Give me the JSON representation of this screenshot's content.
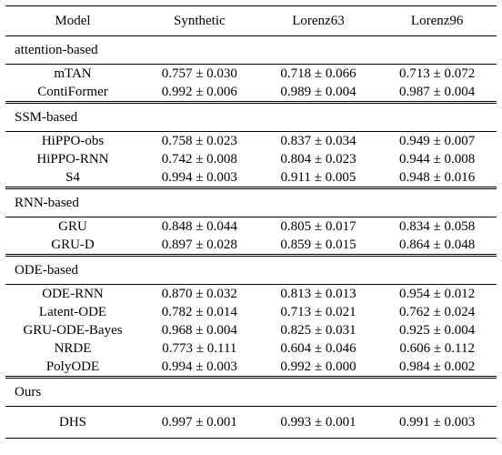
{
  "header": {
    "model": "Model",
    "synthetic": "Synthetic",
    "lorenz63": "Lorenz63",
    "lorenz96": "Lorenz96"
  },
  "groups": [
    {
      "label": "attention-based",
      "rows": [
        {
          "model": "mTAN",
          "synthetic": "0.757 ± 0.030",
          "lorenz63": "0.718 ± 0.066",
          "lorenz96": "0.713 ± 0.072"
        },
        {
          "model": "ContiFormer",
          "synthetic": "0.992 ± 0.006",
          "lorenz63": "0.989 ± 0.004",
          "lorenz96": "0.987 ± 0.004"
        }
      ]
    },
    {
      "label": "SSM-based",
      "rows": [
        {
          "model": "HiPPO-obs",
          "synthetic": "0.758 ± 0.023",
          "lorenz63": "0.837 ± 0.034",
          "lorenz96": "0.949 ± 0.007"
        },
        {
          "model": "HiPPO-RNN",
          "synthetic": "0.742 ± 0.008",
          "lorenz63": "0.804 ± 0.023",
          "lorenz96": "0.944 ± 0.008"
        },
        {
          "model": "S4",
          "synthetic": "0.994 ± 0.003",
          "lorenz63": "0.911 ± 0.005",
          "lorenz96": "0.948 ± 0.016"
        }
      ]
    },
    {
      "label": "RNN-based",
      "rows": [
        {
          "model": "GRU",
          "synthetic": "0.848 ± 0.044",
          "lorenz63": "0.805 ± 0.017",
          "lorenz96": "0.834 ± 0.058"
        },
        {
          "model": "GRU-D",
          "synthetic": "0.897 ± 0.028",
          "lorenz63": "0.859 ± 0.015",
          "lorenz96": "0.864 ± 0.048"
        }
      ]
    },
    {
      "label": "ODE-based",
      "rows": [
        {
          "model": "ODE-RNN",
          "synthetic": "0.870 ± 0.032",
          "lorenz63": "0.813 ± 0.013",
          "lorenz96": "0.954 ± 0.012"
        },
        {
          "model": "Latent-ODE",
          "synthetic": "0.782 ± 0.014",
          "lorenz63": "0.713 ± 0.021",
          "lorenz96": "0.762 ± 0.024"
        },
        {
          "model": "GRU-ODE-Bayes",
          "synthetic": "0.968 ± 0.004",
          "lorenz63": "0.825 ± 0.031",
          "lorenz96": "0.925 ± 0.004"
        },
        {
          "model": "NRDE",
          "synthetic": "0.773 ± 0.111",
          "lorenz63": "0.604 ± 0.046",
          "lorenz96": "0.606 ± 0.112"
        },
        {
          "model": "PolyODE",
          "synthetic": "0.994 ± 0.003",
          "lorenz63": "0.992 ± 0.000",
          "lorenz96": "0.984 ± 0.002"
        }
      ]
    },
    {
      "label": "Ours",
      "rows": [
        {
          "model": "DHS",
          "synthetic": "0.997 ± 0.001",
          "lorenz63": "0.993 ± 0.001",
          "lorenz96": "0.991 ± 0.003"
        }
      ]
    }
  ]
}
